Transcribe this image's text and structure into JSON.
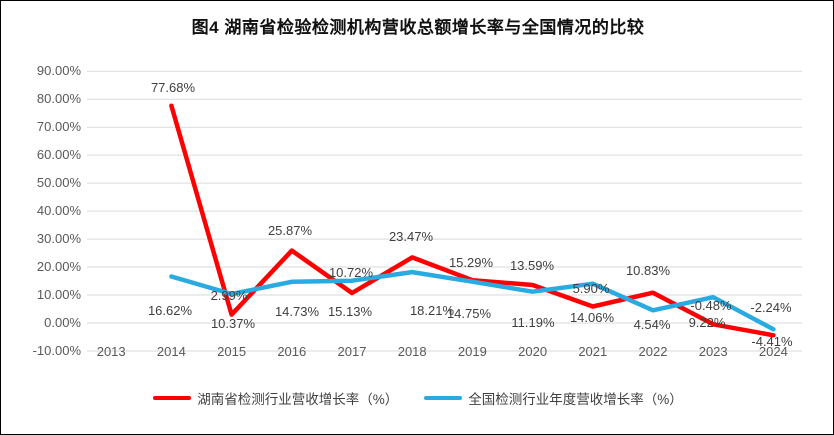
{
  "title": "图4 湖南省检验检测机构营收总额增长率与全国情况的比较",
  "colors": {
    "hunan": "#FF0000",
    "national": "#29ABE2",
    "grid": "#D9D9D9",
    "axis_text": "#595959",
    "label_text": "#3F3F3F"
  },
  "chart_data": {
    "type": "line",
    "title": "图4 湖南省检验检测机构营收总额增长率与全国情况的比较",
    "categories": [
      "2013",
      "2014",
      "2015",
      "2016",
      "2017",
      "2018",
      "2019",
      "2020",
      "2021",
      "2022",
      "2023",
      "2024"
    ],
    "series": [
      {
        "name": "湖南省检测行业营收增长率（%）",
        "color_key": "hunan",
        "values": [
          null,
          77.68,
          2.99,
          25.87,
          10.72,
          23.47,
          15.29,
          13.59,
          5.9,
          10.83,
          -0.48,
          -4.41
        ],
        "point_labels": [
          "",
          "77.68%",
          "2.99%",
          "25.87%",
          "10.72%",
          "23.47%",
          "15.29%",
          "13.59%",
          "5.90%",
          "10.83%",
          "-0.48%",
          "-4.41%"
        ]
      },
      {
        "name": "全国检测行业年度营收增长率（%）",
        "color_key": "national",
        "values": [
          null,
          16.62,
          10.37,
          14.73,
          15.13,
          18.21,
          14.75,
          11.19,
          14.06,
          4.54,
          9.22,
          -2.24
        ],
        "point_labels": [
          "",
          "16.62%",
          "10.37%",
          "14.73%",
          "15.13%",
          "18.21%",
          "14.75%",
          "11.19%",
          "14.06%",
          "4.54%",
          "9.22%",
          "-2.24%"
        ]
      }
    ],
    "y_ticks": [
      "90.00%",
      "80.00%",
      "70.00%",
      "60.00%",
      "50.00%",
      "40.00%",
      "30.00%",
      "20.00%",
      "10.00%",
      "0.00%",
      "-10.00%"
    ],
    "ylim": [
      -10,
      90
    ],
    "xlabel": "",
    "ylabel": "",
    "grid": true,
    "legend_position": "bottom"
  }
}
